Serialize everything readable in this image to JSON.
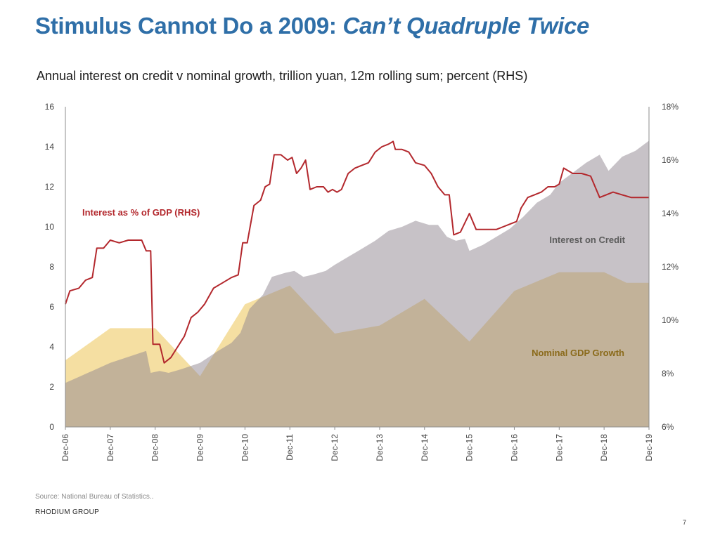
{
  "slide": {
    "title_main": "Stimulus Cannot Do a 2009: ",
    "title_emphasis": "Can’t Quadruple Twice",
    "subtitle": "Annual interest on credit v nominal growth, trillion yuan, 12m rolling sum; percent (RHS)",
    "source": "Source: National Bureau of Statistics..",
    "brand": "RHODIUM GROUP",
    "page_number": "7"
  },
  "chart_data": {
    "type": "area",
    "title": "Annual interest on credit v nominal growth, trillion yuan, 12m rolling sum; percent (RHS)",
    "x_categories": [
      "Dec-06",
      "Dec-07",
      "Dec-08",
      "Dec-09",
      "Dec-10",
      "Dec-11",
      "Dec-12",
      "Dec-13",
      "Dec-14",
      "Dec-15",
      "Dec-16",
      "Dec-17",
      "Dec-18",
      "Dec-19"
    ],
    "y_left": {
      "ticks": [
        0,
        2,
        4,
        6,
        8,
        10,
        12,
        14,
        16
      ],
      "ylim": [
        0,
        16
      ],
      "unit": "trillion yuan"
    },
    "y_right": {
      "ticks": [
        "6%",
        "8%",
        "10%",
        "12%",
        "14%",
        "16%",
        "18%"
      ],
      "ylim": [
        6,
        18
      ],
      "unit": "percent"
    },
    "grid": false,
    "colors": {
      "nominal_gdp": "#f5dfa2",
      "interest_credit": "#c5bfc3",
      "interest_pct_gdp": "#b3282d",
      "axis": "#8c8c8c",
      "title_blue": "#2f6fa8",
      "label_credit": "#5c5c5c",
      "label_gdp": "#8a6a1a"
    },
    "series": [
      {
        "name": "Nominal GDP Growth",
        "axis": "right",
        "kind": "area",
        "points": [
          [
            0,
            8.5
          ],
          [
            1,
            9.7
          ],
          [
            2,
            9.7
          ],
          [
            3,
            7.9
          ],
          [
            4,
            10.6
          ],
          [
            5,
            11.3
          ],
          [
            6,
            9.5
          ],
          [
            7,
            9.8
          ],
          [
            8,
            10.8
          ],
          [
            9,
            9.2
          ],
          [
            10,
            11.1
          ],
          [
            11,
            11.8
          ],
          [
            12,
            11.8
          ],
          [
            12.5,
            11.4
          ],
          [
            13,
            11.4
          ]
        ]
      },
      {
        "name": "Interest on Credit",
        "axis": "left",
        "kind": "area",
        "points": [
          [
            0,
            2.2
          ],
          [
            0.3,
            2.5
          ],
          [
            0.6,
            2.8
          ],
          [
            1,
            3.2
          ],
          [
            1.4,
            3.5
          ],
          [
            1.8,
            3.8
          ],
          [
            1.9,
            2.7
          ],
          [
            2.1,
            2.8
          ],
          [
            2.3,
            2.7
          ],
          [
            2.6,
            2.9
          ],
          [
            3,
            3.2
          ],
          [
            3.4,
            3.8
          ],
          [
            3.7,
            4.2
          ],
          [
            3.9,
            4.7
          ],
          [
            4.1,
            5.9
          ],
          [
            4.4,
            6.6
          ],
          [
            4.6,
            7.5
          ],
          [
            4.9,
            7.7
          ],
          [
            5.1,
            7.8
          ],
          [
            5.3,
            7.5
          ],
          [
            5.5,
            7.6
          ],
          [
            5.8,
            7.8
          ],
          [
            6,
            8.1
          ],
          [
            6.3,
            8.5
          ],
          [
            6.6,
            8.9
          ],
          [
            6.9,
            9.3
          ],
          [
            7.2,
            9.8
          ],
          [
            7.5,
            10.0
          ],
          [
            7.8,
            10.3
          ],
          [
            8.1,
            10.1
          ],
          [
            8.3,
            10.1
          ],
          [
            8.5,
            9.5
          ],
          [
            8.7,
            9.3
          ],
          [
            8.9,
            9.4
          ],
          [
            9,
            8.8
          ],
          [
            9.3,
            9.1
          ],
          [
            9.6,
            9.5
          ],
          [
            9.9,
            9.9
          ],
          [
            10.2,
            10.5
          ],
          [
            10.5,
            11.2
          ],
          [
            10.8,
            11.6
          ],
          [
            11,
            12.2
          ],
          [
            11.3,
            12.7
          ],
          [
            11.6,
            13.2
          ],
          [
            11.9,
            13.6
          ],
          [
            12.1,
            12.8
          ],
          [
            12.4,
            13.5
          ],
          [
            12.7,
            13.8
          ],
          [
            13,
            14.3
          ]
        ]
      },
      {
        "name": "Interest as % of GDP (RHS)",
        "axis": "right",
        "kind": "line",
        "points": [
          [
            0,
            10.6
          ],
          [
            0.1,
            11.1
          ],
          [
            0.3,
            11.2
          ],
          [
            0.45,
            11.5
          ],
          [
            0.6,
            11.6
          ],
          [
            0.7,
            12.7
          ],
          [
            0.85,
            12.7
          ],
          [
            1,
            13.0
          ],
          [
            1.2,
            12.9
          ],
          [
            1.4,
            13.0
          ],
          [
            1.6,
            13.0
          ],
          [
            1.7,
            13.0
          ],
          [
            1.8,
            12.6
          ],
          [
            1.9,
            12.6
          ],
          [
            1.95,
            9.1
          ],
          [
            2.1,
            9.1
          ],
          [
            2.2,
            8.4
          ],
          [
            2.35,
            8.6
          ],
          [
            2.5,
            9.0
          ],
          [
            2.65,
            9.4
          ],
          [
            2.8,
            10.1
          ],
          [
            2.95,
            10.3
          ],
          [
            3.1,
            10.6
          ],
          [
            3.3,
            11.2
          ],
          [
            3.5,
            11.4
          ],
          [
            3.7,
            11.6
          ],
          [
            3.85,
            11.7
          ],
          [
            3.95,
            12.9
          ],
          [
            4.05,
            12.9
          ],
          [
            4.2,
            14.3
          ],
          [
            4.35,
            14.5
          ],
          [
            4.45,
            15.0
          ],
          [
            4.55,
            15.1
          ],
          [
            4.65,
            16.2
          ],
          [
            4.8,
            16.2
          ],
          [
            4.95,
            16.0
          ],
          [
            5.05,
            16.1
          ],
          [
            5.15,
            15.5
          ],
          [
            5.25,
            15.7
          ],
          [
            5.35,
            16.0
          ],
          [
            5.45,
            14.9
          ],
          [
            5.6,
            15.0
          ],
          [
            5.75,
            15.0
          ],
          [
            5.85,
            14.8
          ],
          [
            5.95,
            14.9
          ],
          [
            6.05,
            14.8
          ],
          [
            6.15,
            14.9
          ],
          [
            6.3,
            15.5
          ],
          [
            6.45,
            15.7
          ],
          [
            6.6,
            15.8
          ],
          [
            6.75,
            15.9
          ],
          [
            6.9,
            16.3
          ],
          [
            7.05,
            16.5
          ],
          [
            7.2,
            16.6
          ],
          [
            7.3,
            16.7
          ],
          [
            7.35,
            16.4
          ],
          [
            7.5,
            16.4
          ],
          [
            7.65,
            16.3
          ],
          [
            7.8,
            15.9
          ],
          [
            8,
            15.8
          ],
          [
            8.15,
            15.5
          ],
          [
            8.3,
            15.0
          ],
          [
            8.45,
            14.7
          ],
          [
            8.55,
            14.7
          ],
          [
            8.65,
            13.2
          ],
          [
            8.8,
            13.3
          ],
          [
            9,
            14.0
          ],
          [
            9.15,
            13.4
          ],
          [
            9.3,
            13.4
          ],
          [
            9.45,
            13.4
          ],
          [
            9.6,
            13.4
          ],
          [
            9.75,
            13.5
          ],
          [
            9.9,
            13.6
          ],
          [
            10.05,
            13.7
          ],
          [
            10.15,
            14.2
          ],
          [
            10.3,
            14.6
          ],
          [
            10.45,
            14.7
          ],
          [
            10.6,
            14.8
          ],
          [
            10.75,
            15.0
          ],
          [
            10.9,
            15.0
          ],
          [
            11,
            15.1
          ],
          [
            11.1,
            15.7
          ],
          [
            11.3,
            15.5
          ],
          [
            11.5,
            15.5
          ],
          [
            11.7,
            15.4
          ],
          [
            11.8,
            15.0
          ],
          [
            11.9,
            14.6
          ],
          [
            12.05,
            14.7
          ],
          [
            12.2,
            14.8
          ],
          [
            12.4,
            14.7
          ],
          [
            12.6,
            14.6
          ],
          [
            12.8,
            14.6
          ],
          [
            13,
            14.6
          ]
        ]
      }
    ],
    "annotations": [
      {
        "text": "Interest as % of GDP (RHS)",
        "series": "Interest as % of GDP (RHS)"
      },
      {
        "text": "Interest on Credit",
        "series": "Interest on Credit"
      },
      {
        "text": "Nominal GDP Growth",
        "series": "Nominal GDP Growth"
      }
    ]
  }
}
